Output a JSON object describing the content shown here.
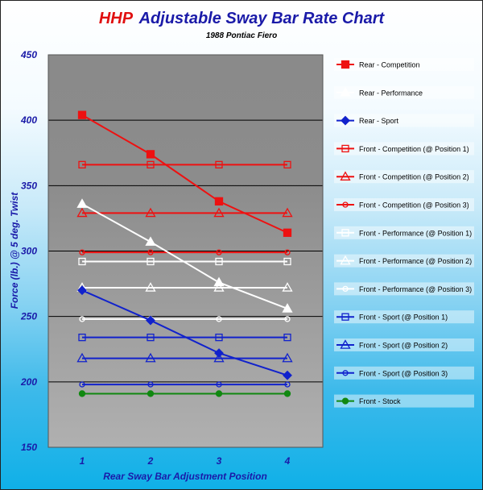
{
  "title": {
    "brand": "HHP",
    "main": "Adjustable Sway Bar Rate Chart",
    "subtitle": "1988 Pontiac Fiero"
  },
  "colors": {
    "red": "#ee1111",
    "white": "#ffffff",
    "blue": "#1122cc",
    "green": "#118811",
    "title_blue": "#1a1aa8",
    "brand_red": "#e01010"
  },
  "chart_data": {
    "type": "line",
    "title": "HHP Adjustable Sway Bar Rate Chart",
    "subtitle": "1988 Pontiac Fiero",
    "xlabel": "Rear Sway Bar Adjustment Position",
    "ylabel": "Force (lb.) @ 5 deg. Twist",
    "x": [
      1,
      2,
      3,
      4
    ],
    "x_tick_labels": [
      "1",
      "2",
      "3",
      "4"
    ],
    "ylim": [
      150,
      450
    ],
    "y_ticks": [
      150,
      200,
      250,
      300,
      350,
      400,
      450
    ],
    "y_tick_labels": [
      "150",
      "200",
      "250",
      "300",
      "350",
      "400",
      "450"
    ],
    "grid": "horizontal",
    "legend_position": "right",
    "series": [
      {
        "name": "Rear - Competition",
        "color": "red",
        "marker": "square-filled",
        "values": [
          404,
          374,
          338,
          314
        ]
      },
      {
        "name": "Rear - Performance",
        "color": "white",
        "marker": "triangle-filled",
        "values": [
          336,
          307,
          276,
          256
        ]
      },
      {
        "name": "Rear - Sport",
        "color": "blue",
        "marker": "diamond-filled",
        "values": [
          270,
          247,
          222,
          205
        ]
      },
      {
        "name": "Front - Competition (@ Position 1)",
        "color": "red",
        "marker": "square-open",
        "values": [
          366,
          366,
          366,
          366
        ]
      },
      {
        "name": "Front - Competition (@ Position 2)",
        "color": "red",
        "marker": "triangle-open",
        "values": [
          329,
          329,
          329,
          329
        ]
      },
      {
        "name": "Front - Competition (@ Position 3)",
        "color": "red",
        "marker": "circle-open",
        "values": [
          299,
          299,
          299,
          299
        ]
      },
      {
        "name": "Front - Performance (@ Position 1)",
        "color": "white",
        "marker": "square-open",
        "values": [
          292,
          292,
          292,
          292
        ]
      },
      {
        "name": "Front - Performance (@ Position 2)",
        "color": "white",
        "marker": "triangle-open",
        "values": [
          272,
          272,
          272,
          272
        ]
      },
      {
        "name": "Front - Performance (@ Position 3)",
        "color": "white",
        "marker": "circle-open",
        "values": [
          248,
          248,
          248,
          248
        ]
      },
      {
        "name": "Front - Sport (@ Position 1)",
        "color": "blue",
        "marker": "square-open",
        "values": [
          234,
          234,
          234,
          234
        ]
      },
      {
        "name": "Front - Sport (@ Position 2)",
        "color": "blue",
        "marker": "triangle-open",
        "values": [
          218,
          218,
          218,
          218
        ]
      },
      {
        "name": "Front - Sport (@ Position 3)",
        "color": "blue",
        "marker": "circle-open",
        "values": [
          198,
          198,
          198,
          198
        ]
      },
      {
        "name": "Front - Stock",
        "color": "green",
        "marker": "circle-filled",
        "values": [
          191,
          191,
          191,
          191
        ]
      }
    ]
  }
}
